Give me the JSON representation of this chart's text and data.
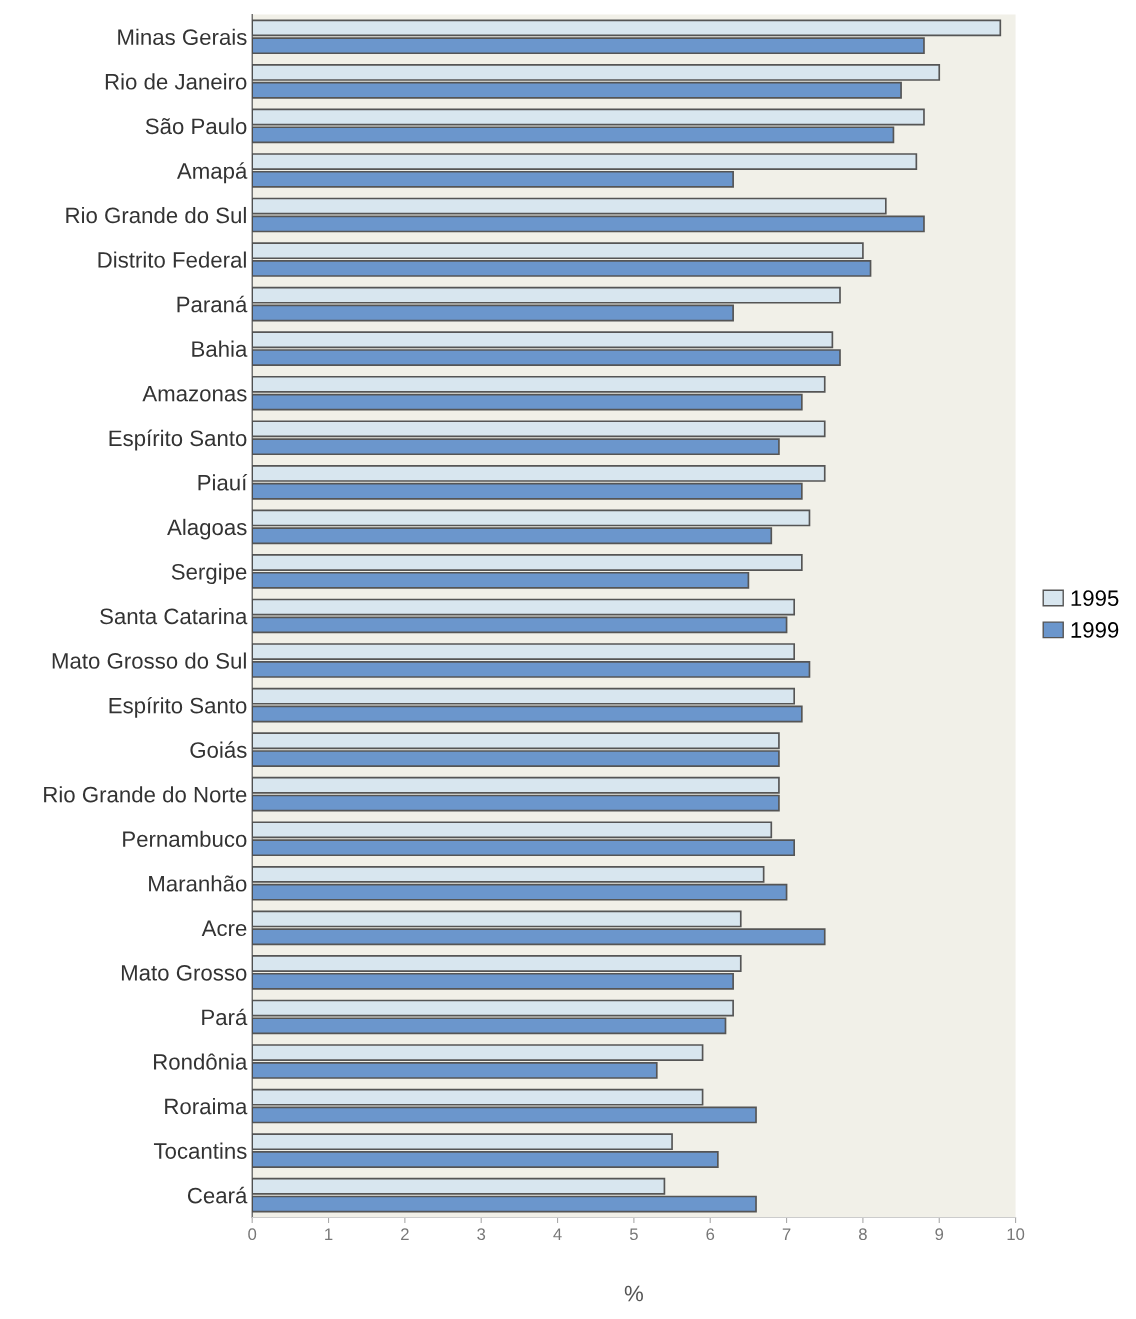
{
  "chart_data": {
    "type": "bar",
    "orientation": "horizontal",
    "xlabel": "%",
    "categories": [
      "Minas Gerais",
      "Rio de Janeiro",
      "São Paulo",
      "Amapá",
      "Rio Grande do Sul",
      "Distrito Federal",
      "Paraná",
      "Bahia",
      "Amazonas",
      "Espírito Santo",
      "Piauí",
      "Alagoas",
      "Sergipe",
      "Santa Catarina",
      "Mato Grosso do Sul",
      "Espírito Santo",
      "Goiás",
      "Rio Grande do Norte",
      "Pernambuco",
      "Maranhão",
      "Acre",
      "Mato Grosso",
      "Pará",
      "Rondônia",
      "Roraima",
      "Tocantins",
      "Ceará"
    ],
    "series": [
      {
        "name": "1995",
        "color": "#d8e6ef",
        "values": [
          9.8,
          9.0,
          8.8,
          8.7,
          8.3,
          8.0,
          7.7,
          7.6,
          7.5,
          7.5,
          7.5,
          7.3,
          7.2,
          7.1,
          7.1,
          7.1,
          6.9,
          6.9,
          6.8,
          6.7,
          6.4,
          6.4,
          6.3,
          5.9,
          5.9,
          5.5,
          5.4
        ]
      },
      {
        "name": "1999",
        "color": "#6b96cc",
        "values": [
          8.8,
          8.5,
          8.4,
          6.3,
          8.8,
          8.1,
          6.3,
          7.7,
          7.2,
          6.9,
          7.2,
          6.8,
          6.5,
          7.0,
          7.3,
          7.2,
          6.9,
          6.9,
          7.1,
          7.0,
          7.5,
          6.3,
          6.2,
          5.3,
          6.6,
          6.1,
          6.6
        ]
      }
    ],
    "xlim": [
      0,
      10
    ],
    "xticks": [
      0,
      1,
      2,
      3,
      4,
      5,
      6,
      7,
      8,
      9,
      10
    ],
    "grid": false,
    "legend": "right"
  }
}
